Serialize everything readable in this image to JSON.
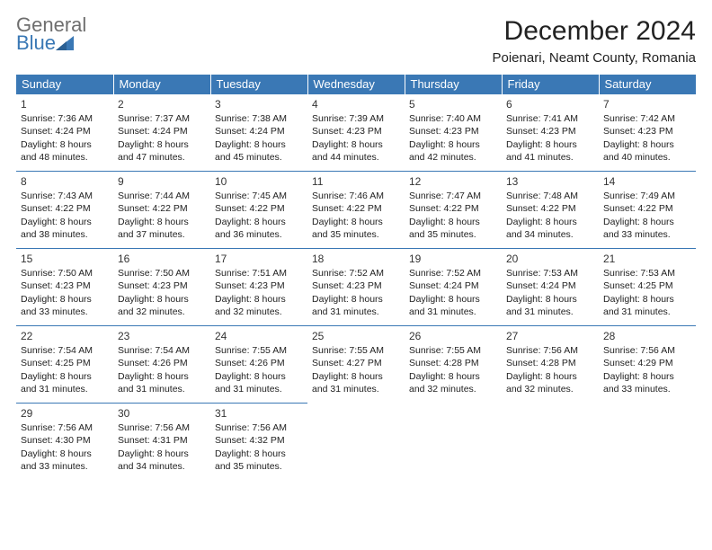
{
  "logo": {
    "text1": "General",
    "text2": "Blue"
  },
  "title": "December 2024",
  "location": "Poienari, Neamt County, Romania",
  "header_bg": "#3a78b5",
  "weekdays": [
    "Sunday",
    "Monday",
    "Tuesday",
    "Wednesday",
    "Thursday",
    "Friday",
    "Saturday"
  ],
  "weeks": [
    [
      {
        "n": "1",
        "sr": "Sunrise: 7:36 AM",
        "ss": "Sunset: 4:24 PM",
        "d1": "Daylight: 8 hours",
        "d2": "and 48 minutes."
      },
      {
        "n": "2",
        "sr": "Sunrise: 7:37 AM",
        "ss": "Sunset: 4:24 PM",
        "d1": "Daylight: 8 hours",
        "d2": "and 47 minutes."
      },
      {
        "n": "3",
        "sr": "Sunrise: 7:38 AM",
        "ss": "Sunset: 4:24 PM",
        "d1": "Daylight: 8 hours",
        "d2": "and 45 minutes."
      },
      {
        "n": "4",
        "sr": "Sunrise: 7:39 AM",
        "ss": "Sunset: 4:23 PM",
        "d1": "Daylight: 8 hours",
        "d2": "and 44 minutes."
      },
      {
        "n": "5",
        "sr": "Sunrise: 7:40 AM",
        "ss": "Sunset: 4:23 PM",
        "d1": "Daylight: 8 hours",
        "d2": "and 42 minutes."
      },
      {
        "n": "6",
        "sr": "Sunrise: 7:41 AM",
        "ss": "Sunset: 4:23 PM",
        "d1": "Daylight: 8 hours",
        "d2": "and 41 minutes."
      },
      {
        "n": "7",
        "sr": "Sunrise: 7:42 AM",
        "ss": "Sunset: 4:23 PM",
        "d1": "Daylight: 8 hours",
        "d2": "and 40 minutes."
      }
    ],
    [
      {
        "n": "8",
        "sr": "Sunrise: 7:43 AM",
        "ss": "Sunset: 4:22 PM",
        "d1": "Daylight: 8 hours",
        "d2": "and 38 minutes."
      },
      {
        "n": "9",
        "sr": "Sunrise: 7:44 AM",
        "ss": "Sunset: 4:22 PM",
        "d1": "Daylight: 8 hours",
        "d2": "and 37 minutes."
      },
      {
        "n": "10",
        "sr": "Sunrise: 7:45 AM",
        "ss": "Sunset: 4:22 PM",
        "d1": "Daylight: 8 hours",
        "d2": "and 36 minutes."
      },
      {
        "n": "11",
        "sr": "Sunrise: 7:46 AM",
        "ss": "Sunset: 4:22 PM",
        "d1": "Daylight: 8 hours",
        "d2": "and 35 minutes."
      },
      {
        "n": "12",
        "sr": "Sunrise: 7:47 AM",
        "ss": "Sunset: 4:22 PM",
        "d1": "Daylight: 8 hours",
        "d2": "and 35 minutes."
      },
      {
        "n": "13",
        "sr": "Sunrise: 7:48 AM",
        "ss": "Sunset: 4:22 PM",
        "d1": "Daylight: 8 hours",
        "d2": "and 34 minutes."
      },
      {
        "n": "14",
        "sr": "Sunrise: 7:49 AM",
        "ss": "Sunset: 4:22 PM",
        "d1": "Daylight: 8 hours",
        "d2": "and 33 minutes."
      }
    ],
    [
      {
        "n": "15",
        "sr": "Sunrise: 7:50 AM",
        "ss": "Sunset: 4:23 PM",
        "d1": "Daylight: 8 hours",
        "d2": "and 33 minutes."
      },
      {
        "n": "16",
        "sr": "Sunrise: 7:50 AM",
        "ss": "Sunset: 4:23 PM",
        "d1": "Daylight: 8 hours",
        "d2": "and 32 minutes."
      },
      {
        "n": "17",
        "sr": "Sunrise: 7:51 AM",
        "ss": "Sunset: 4:23 PM",
        "d1": "Daylight: 8 hours",
        "d2": "and 32 minutes."
      },
      {
        "n": "18",
        "sr": "Sunrise: 7:52 AM",
        "ss": "Sunset: 4:23 PM",
        "d1": "Daylight: 8 hours",
        "d2": "and 31 minutes."
      },
      {
        "n": "19",
        "sr": "Sunrise: 7:52 AM",
        "ss": "Sunset: 4:24 PM",
        "d1": "Daylight: 8 hours",
        "d2": "and 31 minutes."
      },
      {
        "n": "20",
        "sr": "Sunrise: 7:53 AM",
        "ss": "Sunset: 4:24 PM",
        "d1": "Daylight: 8 hours",
        "d2": "and 31 minutes."
      },
      {
        "n": "21",
        "sr": "Sunrise: 7:53 AM",
        "ss": "Sunset: 4:25 PM",
        "d1": "Daylight: 8 hours",
        "d2": "and 31 minutes."
      }
    ],
    [
      {
        "n": "22",
        "sr": "Sunrise: 7:54 AM",
        "ss": "Sunset: 4:25 PM",
        "d1": "Daylight: 8 hours",
        "d2": "and 31 minutes."
      },
      {
        "n": "23",
        "sr": "Sunrise: 7:54 AM",
        "ss": "Sunset: 4:26 PM",
        "d1": "Daylight: 8 hours",
        "d2": "and 31 minutes."
      },
      {
        "n": "24",
        "sr": "Sunrise: 7:55 AM",
        "ss": "Sunset: 4:26 PM",
        "d1": "Daylight: 8 hours",
        "d2": "and 31 minutes."
      },
      {
        "n": "25",
        "sr": "Sunrise: 7:55 AM",
        "ss": "Sunset: 4:27 PM",
        "d1": "Daylight: 8 hours",
        "d2": "and 31 minutes."
      },
      {
        "n": "26",
        "sr": "Sunrise: 7:55 AM",
        "ss": "Sunset: 4:28 PM",
        "d1": "Daylight: 8 hours",
        "d2": "and 32 minutes."
      },
      {
        "n": "27",
        "sr": "Sunrise: 7:56 AM",
        "ss": "Sunset: 4:28 PM",
        "d1": "Daylight: 8 hours",
        "d2": "and 32 minutes."
      },
      {
        "n": "28",
        "sr": "Sunrise: 7:56 AM",
        "ss": "Sunset: 4:29 PM",
        "d1": "Daylight: 8 hours",
        "d2": "and 33 minutes."
      }
    ],
    [
      {
        "n": "29",
        "sr": "Sunrise: 7:56 AM",
        "ss": "Sunset: 4:30 PM",
        "d1": "Daylight: 8 hours",
        "d2": "and 33 minutes."
      },
      {
        "n": "30",
        "sr": "Sunrise: 7:56 AM",
        "ss": "Sunset: 4:31 PM",
        "d1": "Daylight: 8 hours",
        "d2": "and 34 minutes."
      },
      {
        "n": "31",
        "sr": "Sunrise: 7:56 AM",
        "ss": "Sunset: 4:32 PM",
        "d1": "Daylight: 8 hours",
        "d2": "and 35 minutes."
      },
      null,
      null,
      null,
      null
    ]
  ]
}
